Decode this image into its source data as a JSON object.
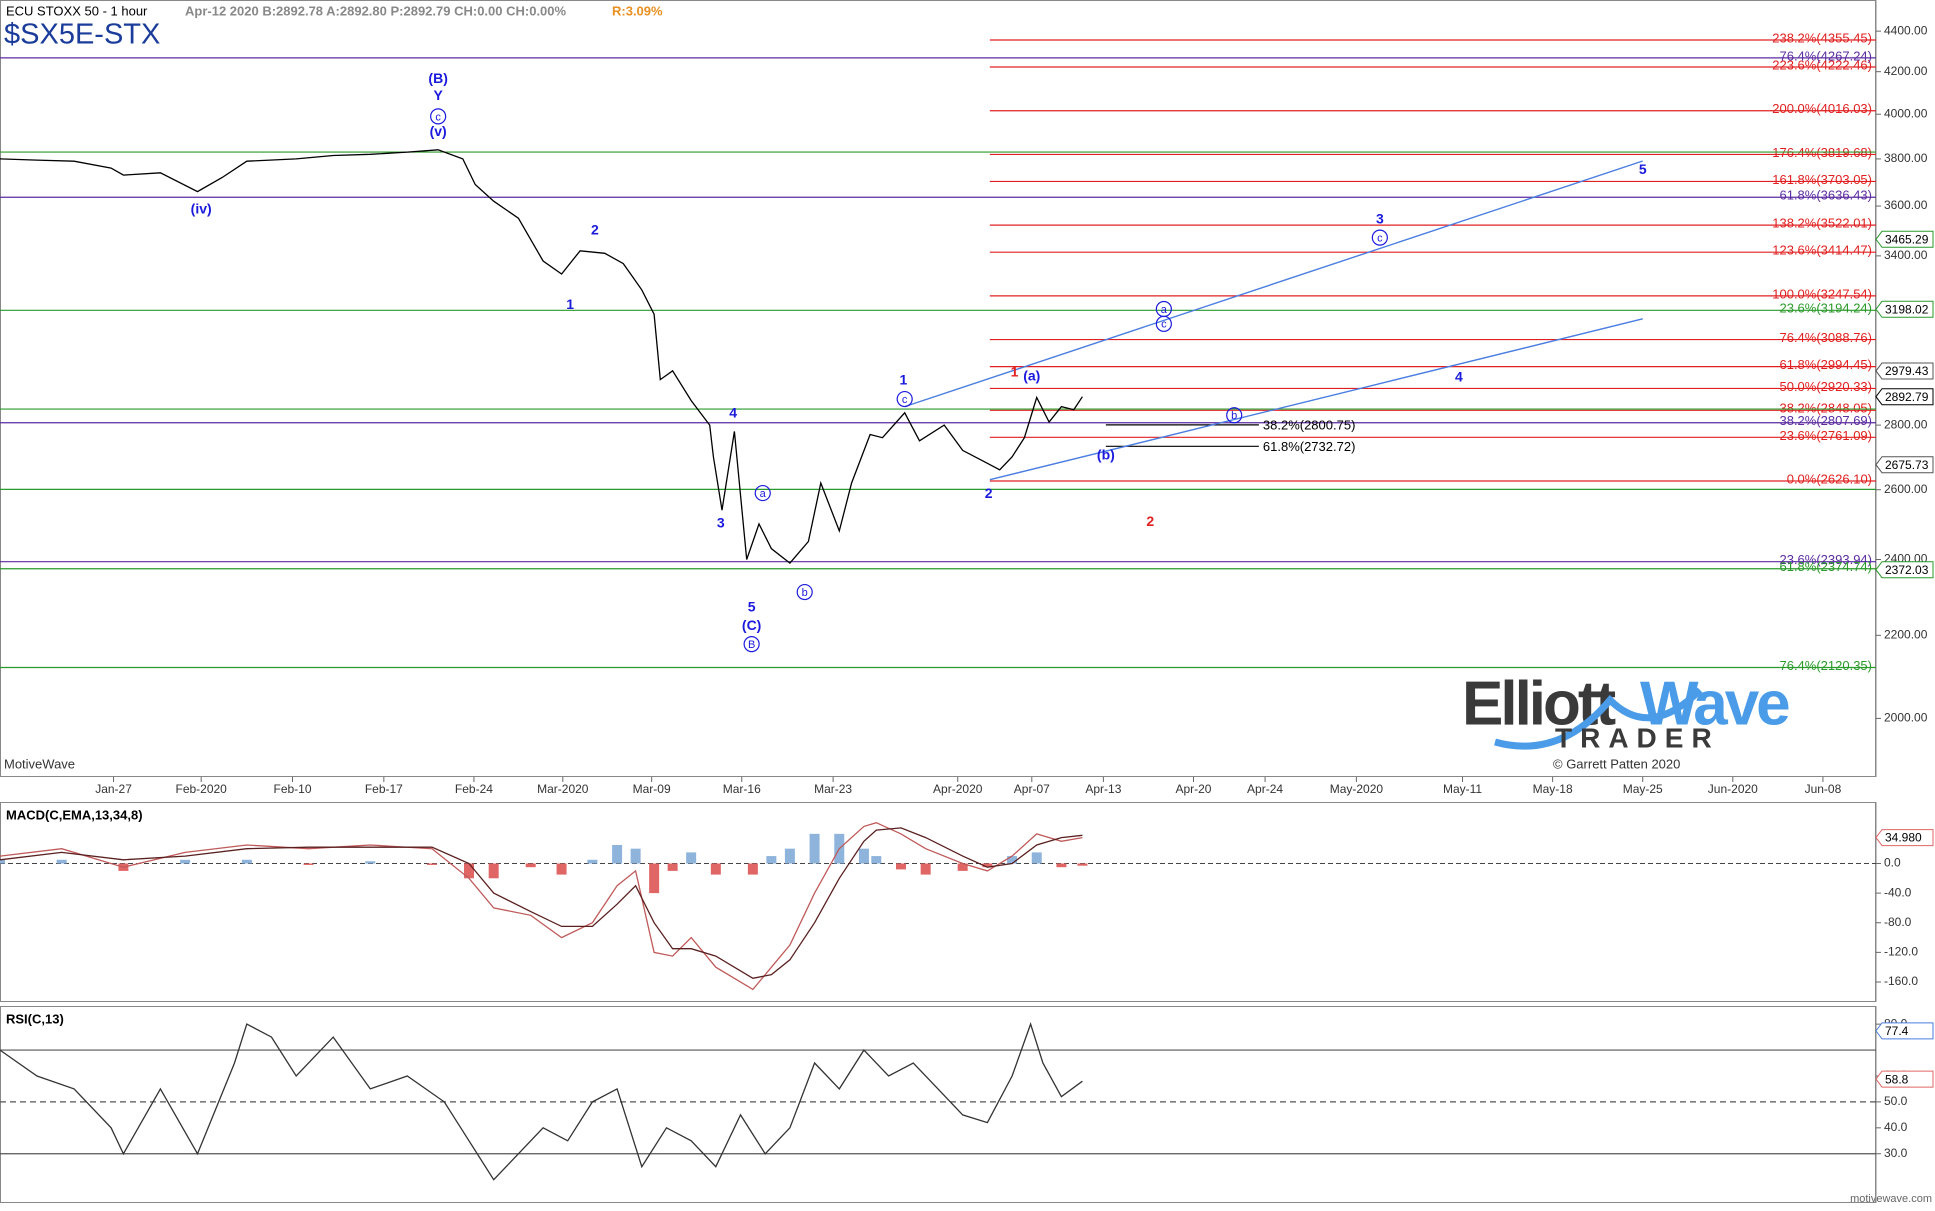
{
  "header": {
    "title": "ECU STOXX 50 - 1 hour",
    "quote": "Apr-12 2020  B:2892.78  A:2892.80  P:2892.79  CH:0.00  CH:0.00%",
    "range": "R:3.09%",
    "symbol": "$SX5E-STX"
  },
  "footer": {
    "platform": "MotiveWave",
    "site": "motivewave.com"
  },
  "logo": {
    "name_left": "Elliott",
    "name_right": "Wave",
    "sub": "TRADER",
    "credit": "© Garrett Patten 2020"
  },
  "chart_data": [
    {
      "type": "line",
      "log_scale": true,
      "color": "#000000",
      "xlim": [
        0,
        152
      ],
      "xticks": [
        {
          "value": 9.2,
          "label": "Jan-27"
        },
        {
          "value": 16.3,
          "label": "Feb-2020"
        },
        {
          "value": 23.7,
          "label": "Feb-10"
        },
        {
          "value": 31.1,
          "label": "Feb-17"
        },
        {
          "value": 38.4,
          "label": "Feb-24"
        },
        {
          "value": 45.6,
          "label": "Mar-2020"
        },
        {
          "value": 52.8,
          "label": "Mar-09"
        },
        {
          "value": 60.1,
          "label": "Mar-16"
        },
        {
          "value": 67.5,
          "label": "Mar-23"
        },
        {
          "value": 77.6,
          "label": "Apr-2020"
        },
        {
          "value": 83.6,
          "label": "Apr-07"
        },
        {
          "value": 89.4,
          "label": "Apr-13"
        },
        {
          "value": 96.7,
          "label": "Apr-20"
        },
        {
          "value": 102.5,
          "label": "Apr-24"
        },
        {
          "value": 109.9,
          "label": "May-2020"
        },
        {
          "value": 118.5,
          "label": "May-11"
        },
        {
          "value": 125.8,
          "label": "May-18"
        },
        {
          "value": 133.1,
          "label": "May-25"
        },
        {
          "value": 140.4,
          "label": "Jun-2020"
        },
        {
          "value": 147.7,
          "label": "Jun-08"
        }
      ],
      "ylim": [
        1870,
        4560
      ],
      "yticks": [
        {
          "value": 2000,
          "label": "2000.00"
        },
        {
          "value": 2200,
          "label": "2200.00"
        },
        {
          "value": 2400,
          "label": "2400.00"
        },
        {
          "value": 2600,
          "label": "2600.00"
        },
        {
          "value": 2800,
          "label": "2800.00"
        },
        {
          "value": 3400,
          "label": "3400.00"
        },
        {
          "value": 3600,
          "label": "3600.00"
        },
        {
          "value": 3800,
          "label": "3800.00"
        },
        {
          "value": 4000,
          "label": "4000.00"
        },
        {
          "value": 4200,
          "label": "4200.00"
        },
        {
          "value": 4400,
          "label": "4400.00"
        }
      ],
      "x": [
        0,
        3,
        6,
        9,
        10,
        13,
        16,
        18,
        20,
        24,
        27,
        30,
        33,
        35.5,
        37.5,
        38.5,
        40,
        42,
        44,
        45.5,
        47,
        49,
        50.5,
        52,
        53,
        53.5,
        54.5,
        56,
        57.5,
        57.8,
        58.5,
        59.5,
        60.5,
        61.5,
        62.5,
        64,
        65.5,
        66.5,
        68,
        69,
        70.5,
        71.5,
        73.3,
        74.5,
        76.5,
        78,
        80,
        81,
        82,
        83,
        84,
        85,
        86,
        87,
        87.7
      ],
      "values": [
        3800,
        3795,
        3790,
        3760,
        3730,
        3740,
        3660,
        3720,
        3790,
        3800,
        3815,
        3820,
        3830,
        3840,
        3800,
        3690,
        3620,
        3550,
        3380,
        3330,
        3420,
        3410,
        3370,
        3270,
        3180,
        2950,
        2980,
        2880,
        2800,
        2700,
        2540,
        2780,
        2400,
        2500,
        2430,
        2390,
        2450,
        2620,
        2480,
        2620,
        2770,
        2760,
        2840,
        2750,
        2800,
        2720,
        2680,
        2660,
        2700,
        2760,
        2890,
        2810,
        2860,
        2850,
        2892.79
      ],
      "levels": [
        {
          "value": 4355.45,
          "label": "238.2%(4355.45)",
          "color": "#e02020",
          "xstart": 80.2
        },
        {
          "value": 4222.46,
          "label": "223.6%(4222.46)",
          "color": "#e02020",
          "xstart": 80.2
        },
        {
          "value": 4016.03,
          "label": "200.0%(4016.03)",
          "color": "#e02020",
          "xstart": 80.2
        },
        {
          "value": 3819.68,
          "label": "176.4%(3819.68)",
          "color": "#e02020",
          "xstart": 80.2
        },
        {
          "value": 3703.05,
          "label": "161.8%(3703.05)",
          "color": "#e02020",
          "xstart": 80.2
        },
        {
          "value": 3522.01,
          "label": "138.2%(3522.01)",
          "color": "#e02020",
          "xstart": 80.2
        },
        {
          "value": 3414.47,
          "label": "123.6%(3414.47)",
          "color": "#e02020",
          "xstart": 80.2
        },
        {
          "value": 3247.54,
          "label": "100.0%(3247.54)",
          "color": "#e02020",
          "xstart": 80.2
        },
        {
          "value": 3088.76,
          "label": "76.4%(3088.76)",
          "color": "#e02020",
          "xstart": 80.2
        },
        {
          "value": 2994.45,
          "label": "61.8%(2994.45)",
          "color": "#e02020",
          "xstart": 80.2
        },
        {
          "value": 2920.33,
          "label": "50.0%(2920.33)",
          "color": "#e02020",
          "xstart": 80.2
        },
        {
          "value": 2848.05,
          "label": "38.2%(2848.05)",
          "color": "#e02020",
          "xstart": 80.2
        },
        {
          "value": 2761.09,
          "label": "23.6%(2761.09)",
          "color": "#e02020",
          "xstart": 80.2
        },
        {
          "value": 2626.1,
          "label": "0.0%(2626.10)",
          "color": "#e02020",
          "xstart": 80.2
        },
        {
          "value": 4267.24,
          "label": "76.4%(4267.24)",
          "color": "#5b2ca0"
        },
        {
          "value": 3636.43,
          "label": "61.8%(3636.43)",
          "color": "#5b2ca0"
        },
        {
          "value": 2807.69,
          "label": "38.2%(2807.69)",
          "color": "#5b2ca0"
        },
        {
          "value": 2393.94,
          "label": "23.6%(2393.94)",
          "color": "#5b2ca0"
        },
        {
          "value": 3830,
          "color": "#2a9a2a"
        },
        {
          "value": 3194.24,
          "label": "23.6%(3194.24)",
          "color": "#2a9a2a"
        },
        {
          "value": 2852,
          "color": "#2a9a2a"
        },
        {
          "value": 2601,
          "color": "#2a9a2a"
        },
        {
          "value": 2374.74,
          "label": "61.8%(2374.74)",
          "color": "#2a9a2a"
        },
        {
          "value": 2120.35,
          "label": "76.4%(2120.35)",
          "color": "#2a9a2a"
        },
        {
          "value": 2800.75,
          "label": "38.2%(2800.75)",
          "color": "#000000",
          "xstart": 89.6,
          "xend": 102
        },
        {
          "value": 2732.72,
          "label": "61.8%(2732.72)",
          "color": "#000000",
          "xstart": 89.6,
          "xend": 102
        }
      ],
      "price_markers": [
        {
          "value": 3465.29,
          "color": "#2a9a2a"
        },
        {
          "value": 3198.02,
          "color": "#2a9a2a"
        },
        {
          "value": 2979.43,
          "color": "#555555"
        },
        {
          "value": 2892.79,
          "color": "#000000"
        },
        {
          "value": 2675.73,
          "color": "#555555"
        },
        {
          "value": 2372.03,
          "color": "#2a9a2a"
        }
      ],
      "trendlines": [
        {
          "x": [
            73.3,
            133.1
          ],
          "y": [
            2860,
            3791
          ],
          "color": "#4a7ee0"
        },
        {
          "x": [
            80.2,
            133.1
          ],
          "y": [
            2630,
            3163
          ],
          "color": "#4a7ee0"
        }
      ],
      "annotations": [
        {
          "text": "(B)",
          "x": 35.5,
          "y": 4169,
          "color": "#1a1adc"
        },
        {
          "text": "Y",
          "x": 35.5,
          "y": 4088,
          "color": "#1a1adc"
        },
        {
          "text": "c",
          "x": 35.5,
          "y": 3990,
          "color": "#1a1adc",
          "circled": true
        },
        {
          "text": "(v)",
          "x": 35.5,
          "y": 3923,
          "color": "#1a1adc"
        },
        {
          "text": "(iv)",
          "x": 16.3,
          "y": 3588,
          "color": "#1a1adc"
        },
        {
          "text": "2",
          "x": 48.2,
          "y": 3503,
          "color": "#1a1adc"
        },
        {
          "text": "1",
          "x": 46.2,
          "y": 3217,
          "color": "#1a1adc"
        },
        {
          "text": "4",
          "x": 59.4,
          "y": 2840,
          "color": "#1a1adc"
        },
        {
          "text": "3",
          "x": 58.4,
          "y": 2503,
          "color": "#1a1adc"
        },
        {
          "text": "a",
          "x": 61.8,
          "y": 2590,
          "color": "#1a1adc",
          "circled": true
        },
        {
          "text": "b",
          "x": 65.2,
          "y": 2312,
          "color": "#1a1adc",
          "circled": true
        },
        {
          "text": "5",
          "x": 60.9,
          "y": 2273,
          "color": "#1a1adc"
        },
        {
          "text": "(C)",
          "x": 60.9,
          "y": 2225,
          "color": "#1a1adc"
        },
        {
          "text": "B",
          "x": 60.9,
          "y": 2178,
          "color": "#1a1adc",
          "circled": true
        },
        {
          "text": "1",
          "x": 73.2,
          "y": 2950,
          "color": "#1a1adc"
        },
        {
          "text": "c",
          "x": 73.3,
          "y": 2885,
          "color": "#1a1adc",
          "circled": true
        },
        {
          "text": "2",
          "x": 80.1,
          "y": 2590,
          "color": "#1a1adc"
        },
        {
          "text": "1",
          "x": 82.2,
          "y": 2976,
          "color": "#e02020"
        },
        {
          "text": "(a)",
          "x": 83.6,
          "y": 2963,
          "color": "#1a1adc"
        },
        {
          "text": "(b)",
          "x": 89.6,
          "y": 2706,
          "color": "#1a1adc"
        },
        {
          "text": "b",
          "x": 100,
          "y": 2832,
          "color": "#1a1adc",
          "circled": true
        },
        {
          "text": "a",
          "x": 94.3,
          "y": 3199,
          "color": "#1a1adc",
          "circled": true
        },
        {
          "text": "c",
          "x": 94.3,
          "y": 3145,
          "color": "#1a1adc",
          "circled": true
        },
        {
          "text": "3",
          "x": 111.8,
          "y": 3547,
          "color": "#1a1adc"
        },
        {
          "text": "c",
          "x": 111.8,
          "y": 3472,
          "color": "#1a1adc",
          "circled": true
        },
        {
          "text": "4",
          "x": 118.2,
          "y": 2959,
          "color": "#1a1adc"
        },
        {
          "text": "5",
          "x": 133.1,
          "y": 3754,
          "color": "#1a1adc"
        },
        {
          "text": "2",
          "x": 93.2,
          "y": 2507,
          "color": "#e02020"
        }
      ]
    },
    {
      "type": "line",
      "title": "MACD(C,EMA,13,34,8)",
      "xlim": [
        0,
        152
      ],
      "ylim": [
        -187,
        83
      ],
      "yticks": [
        {
          "value": 0,
          "label": "0.0"
        },
        {
          "value": -40,
          "label": "-40.0"
        },
        {
          "value": -80,
          "label": "-80.0"
        },
        {
          "value": -120,
          "label": "-120.0"
        },
        {
          "value": -160,
          "label": "-160.0"
        }
      ],
      "x": [
        0,
        5,
        10,
        15,
        20,
        25,
        30,
        35,
        38,
        40,
        43,
        45.5,
        48,
        50,
        51.5,
        53,
        54.5,
        56,
        58,
        61,
        62.5,
        64,
        66,
        68,
        70,
        71,
        73,
        75,
        78,
        80,
        82,
        84,
        86,
        87.7
      ],
      "series": [
        {
          "type": "bar",
          "color_up": "#8fb4dc",
          "color_down": "#e06666",
          "values": [
            5,
            5,
            -10,
            5,
            5,
            -2,
            3,
            -2,
            -20,
            -20,
            -5,
            -15,
            5,
            25,
            20,
            -40,
            -10,
            15,
            -15,
            -15,
            10,
            20,
            40,
            40,
            20,
            10,
            -8,
            -15,
            -10,
            -5,
            10,
            15,
            -5,
            -3
          ]
        },
        {
          "type": "line",
          "color": "#c05a5a",
          "values": [
            10,
            20,
            -5,
            15,
            25,
            20,
            25,
            20,
            -20,
            -60,
            -70,
            -100,
            -80,
            -30,
            -10,
            -120,
            -125,
            -100,
            -140,
            -170,
            -140,
            -110,
            -40,
            20,
            50,
            55,
            40,
            20,
            0,
            -10,
            10,
            40,
            30,
            35
          ]
        },
        {
          "type": "line",
          "color": "#5a2020",
          "values": [
            5,
            15,
            5,
            10,
            20,
            22,
            22,
            22,
            0,
            -40,
            -65,
            -85,
            -85,
            -55,
            -30,
            -80,
            -115,
            -115,
            -125,
            -155,
            -150,
            -130,
            -80,
            -20,
            30,
            45,
            48,
            35,
            10,
            -5,
            0,
            25,
            35,
            38
          ]
        }
      ],
      "zero_line": true,
      "price_markers": [
        {
          "value": 34.98,
          "value_label": "34.980",
          "color": "#e06666"
        }
      ]
    },
    {
      "type": "line",
      "title": "RSI(C,13)",
      "xlim": [
        0,
        152
      ],
      "ylim": [
        11,
        87
      ],
      "yticks": [
        {
          "value": 30,
          "label": "30.0"
        },
        {
          "value": 40,
          "label": "40.0"
        },
        {
          "value": 50,
          "label": "50.0"
        },
        {
          "value": 60,
          "label": "60.0"
        },
        {
          "value": 80,
          "label": "80.0"
        }
      ],
      "x": [
        0,
        3,
        6,
        9,
        10,
        13,
        16,
        19,
        20,
        22,
        24,
        27,
        30,
        33,
        36,
        38,
        40,
        42,
        44,
        46,
        48,
        50,
        52,
        54,
        56,
        58,
        60,
        62,
        64,
        66,
        68,
        70,
        72,
        74,
        76,
        78,
        80,
        82,
        83.5,
        84.5,
        86,
        87.7
      ],
      "series": [
        {
          "type": "line",
          "color": "#333333",
          "values": [
            70,
            60,
            55,
            40,
            30,
            55,
            30,
            65,
            80,
            75,
            60,
            75,
            55,
            60,
            50,
            35,
            20,
            30,
            40,
            35,
            50,
            55,
            25,
            40,
            35,
            25,
            45,
            30,
            40,
            65,
            55,
            70,
            60,
            65,
            55,
            45,
            42,
            60,
            80,
            65,
            52,
            58
          ]
        }
      ],
      "levels": [
        {
          "value": 70,
          "color": "#555555"
        },
        {
          "value": 50,
          "color": "#555555",
          "dashed": true
        },
        {
          "value": 30,
          "color": "#555555"
        }
      ],
      "price_markers": [
        {
          "value": 77.4,
          "color": "#4a7ee0"
        },
        {
          "value": 58.8,
          "color": "#e06666"
        }
      ]
    }
  ]
}
